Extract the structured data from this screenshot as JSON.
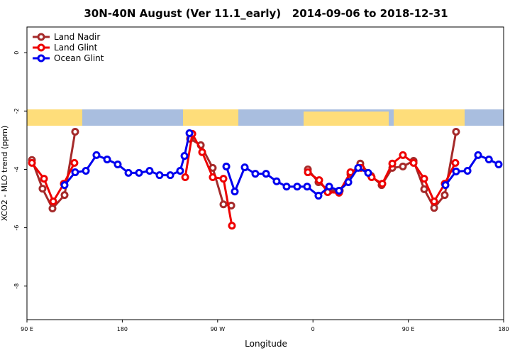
{
  "chart_data": {
    "type": "line",
    "title": "30N-40N August (Ver 11.1_early)   2014-09-06 to 2018-12-31",
    "xlabel": "Longitude",
    "ylabel": "XCO2 - MLO trend (ppm)",
    "xlim": [
      90,
      540
    ],
    "ylim": [
      -9.15,
      0.88
    ],
    "xticks": [
      {
        "value": 90,
        "label": "90 E"
      },
      {
        "value": 180,
        "label": "180"
      },
      {
        "value": 270,
        "label": "90 W"
      },
      {
        "value": 360,
        "label": "0"
      },
      {
        "value": 450,
        "label": "90 E"
      },
      {
        "value": 540,
        "label": "180"
      }
    ],
    "yticks": [
      0,
      -2,
      -4,
      -6,
      -8
    ],
    "legend": "top-left",
    "series": [
      {
        "name": "Land Nadir",
        "color": "#a52a2a",
        "x": [
          94.7,
          104.7,
          114.1,
          125.5,
          135.5,
          null,
          244.0,
          254.1,
          265.4,
          275.5,
          282.9,
          null,
          355.2,
          365.2,
          375.3,
          385.3,
          395.4,
          404.7,
          414.8,
          424.8,
          434.9,
          444.9,
          455.0,
          465.0,
          474.4,
          484.4,
          495.1
        ],
        "values": [
          -3.68,
          -4.66,
          -5.34,
          -4.88,
          -2.71,
          null,
          -2.95,
          -3.17,
          -3.95,
          -5.2,
          -5.24,
          null,
          -4.0,
          -4.44,
          -4.73,
          -4.73,
          -4.17,
          -3.8,
          -4.22,
          -4.54,
          -3.95,
          -3.9,
          -3.71,
          -4.68,
          -5.32,
          -4.88,
          -2.71
        ]
      },
      {
        "name": "Land Glint",
        "color": "#ee0000",
        "x": [
          94.7,
          106.1,
          114.8,
          124.8,
          134.8,
          null,
          239.4,
          246.1,
          255.4,
          265.4,
          275.5,
          283.5,
          null,
          355.2,
          365.9,
          373.9,
          384.6,
          395.4,
          405.4,
          415.4,
          425.5,
          434.9,
          444.9,
          455.0,
          465.0,
          474.4,
          484.4,
          494.4
        ],
        "values": [
          -3.78,
          -4.32,
          -5.1,
          -4.49,
          -3.78,
          null,
          -4.27,
          -2.78,
          -3.41,
          -4.27,
          -4.32,
          -5.93,
          null,
          -4.1,
          -4.37,
          -4.78,
          -4.8,
          -4.1,
          -3.95,
          -4.27,
          -4.49,
          -3.8,
          -3.51,
          -3.78,
          -4.32,
          -5.1,
          -4.49,
          -3.78
        ]
      },
      {
        "name": "Ocean Glint",
        "color": "#0000ee",
        "x": [
          125.5,
          135.5,
          145.6,
          155.6,
          165.7,
          175.7,
          185.8,
          195.8,
          205.8,
          215.2,
          225.3,
          234.6,
          238.7,
          243.4,
          null,
          278.2,
          286.2,
          295.6,
          305.6,
          315.7,
          325.7,
          335.1,
          345.1,
          354.5,
          365.2,
          375.3,
          384.6,
          393.4,
          402.7,
          412.1,
          null,
          485.1,
          495.1,
          505.9,
          515.9,
          526.1,
          535.3
        ],
        "values": [
          -4.54,
          -4.1,
          -4.05,
          -3.51,
          -3.66,
          -3.83,
          -4.12,
          -4.12,
          -4.05,
          -4.2,
          -4.2,
          -4.05,
          -3.54,
          -2.76,
          null,
          -3.9,
          -4.76,
          -3.93,
          -4.15,
          -4.15,
          -4.41,
          -4.59,
          -4.59,
          -4.59,
          -4.9,
          -4.59,
          -4.73,
          -4.44,
          -3.95,
          -4.12,
          null,
          -4.54,
          -4.07,
          -4.05,
          -3.51,
          -3.66,
          -3.83
        ]
      }
    ]
  }
}
